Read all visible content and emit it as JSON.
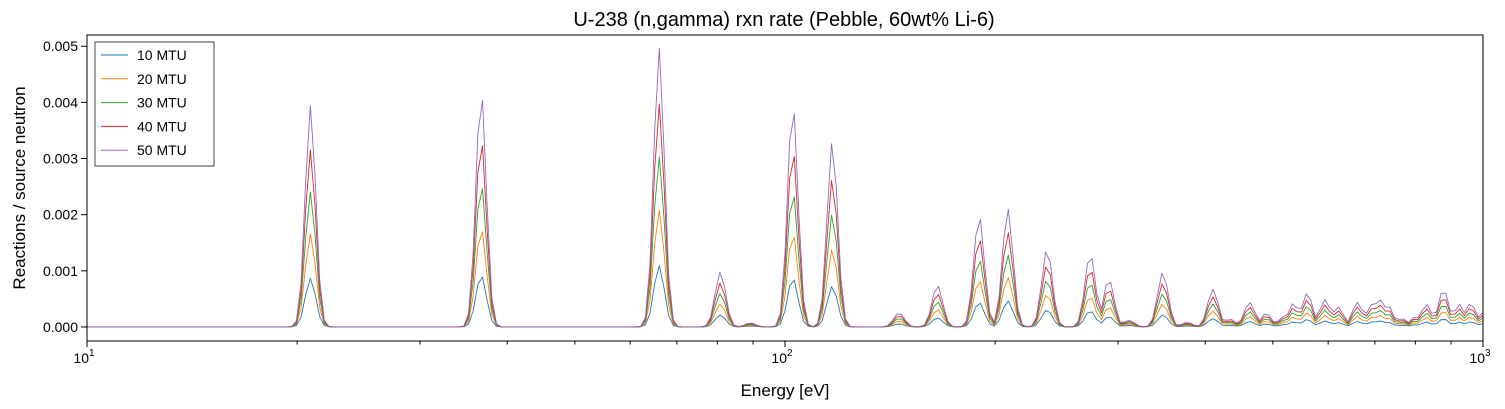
{
  "chart_data": {
    "type": "line",
    "title": "U-238 (n,gamma) rxn rate (Pebble, 60wt% Li-6)",
    "xlabel": "Energy [eV]",
    "ylabel": "Reactions / source neutron",
    "xscale": "log",
    "xlim": [
      10,
      1000
    ],
    "ylim": [
      -0.00025,
      0.0052
    ],
    "grid": false,
    "legend_position": "top-left",
    "x_tick_labels": [
      {
        "value": 10,
        "base": "10",
        "exp": "1"
      },
      {
        "value": 100,
        "base": "10",
        "exp": "2"
      },
      {
        "value": 1000,
        "base": "10",
        "exp": "3"
      }
    ],
    "y_ticks": [
      0,
      0.001,
      0.002,
      0.003,
      0.004,
      0.005
    ],
    "y_tick_labels": [
      "0.000",
      "0.001",
      "0.002",
      "0.003",
      "0.004",
      "0.005"
    ],
    "peaks_at_50_mtu": [
      {
        "energy": 20.9,
        "value": 0.00394
      },
      {
        "energy": 36.7,
        "value": 0.00418
      },
      {
        "energy": 66.0,
        "value": 0.00497
      },
      {
        "energy": 80.8,
        "value": 0.00098
      },
      {
        "energy": 89.2,
        "value": 7e-05
      },
      {
        "energy": 102.6,
        "value": 0.00396
      },
      {
        "energy": 116.9,
        "value": 0.0033
      },
      {
        "energy": 145.7,
        "value": 0.00025
      },
      {
        "energy": 165.3,
        "value": 0.00074
      },
      {
        "energy": 189.7,
        "value": 0.00198
      },
      {
        "energy": 208.5,
        "value": 0.00211
      },
      {
        "energy": 237.4,
        "value": 0.00139
      },
      {
        "energy": 273.7,
        "value": 0.0013
      },
      {
        "energy": 291.0,
        "value": 0.00085
      },
      {
        "energy": 311.0,
        "value": 0.00012
      },
      {
        "energy": 347.8,
        "value": 0.00097
      },
      {
        "energy": 376.9,
        "value": 8e-05
      },
      {
        "energy": 410.3,
        "value": 0.00067
      },
      {
        "energy": 434.0,
        "value": 0.00014
      },
      {
        "energy": 463.0,
        "value": 0.00044
      },
      {
        "energy": 489.0,
        "value": 0.00024
      },
      {
        "energy": 518.0,
        "value": 0.00018
      },
      {
        "energy": 535.0,
        "value": 0.00042
      },
      {
        "energy": 560.0,
        "value": 0.0006
      },
      {
        "energy": 594.0,
        "value": 0.00049
      },
      {
        "energy": 620.0,
        "value": 0.00036
      },
      {
        "energy": 661.0,
        "value": 0.00044
      },
      {
        "energy": 693.0,
        "value": 0.0004
      },
      {
        "energy": 710.0,
        "value": 0.0005
      },
      {
        "energy": 730.0,
        "value": 0.00039
      },
      {
        "energy": 765.0,
        "value": 0.00015
      },
      {
        "energy": 800.0,
        "value": 0.00018
      },
      {
        "energy": 830.0,
        "value": 0.0004
      },
      {
        "energy": 855.0,
        "value": 0.0002
      },
      {
        "energy": 878.0,
        "value": 0.00066
      },
      {
        "energy": 925.0,
        "value": 0.0004
      },
      {
        "energy": 960.0,
        "value": 0.00042
      },
      {
        "energy": 1000.0,
        "value": 0.00026
      }
    ],
    "series": [
      {
        "name": "10 MTU",
        "color": "#1f77b4",
        "scale": 0.22
      },
      {
        "name": "20 MTU",
        "color": "#ff7f0e",
        "scale": 0.42
      },
      {
        "name": "30 MTU",
        "color": "#2ca02c",
        "scale": 0.61
      },
      {
        "name": "40 MTU",
        "color": "#d62728",
        "scale": 0.8
      },
      {
        "name": "50 MTU",
        "color": "#9467bd",
        "scale": 1.0
      }
    ]
  }
}
